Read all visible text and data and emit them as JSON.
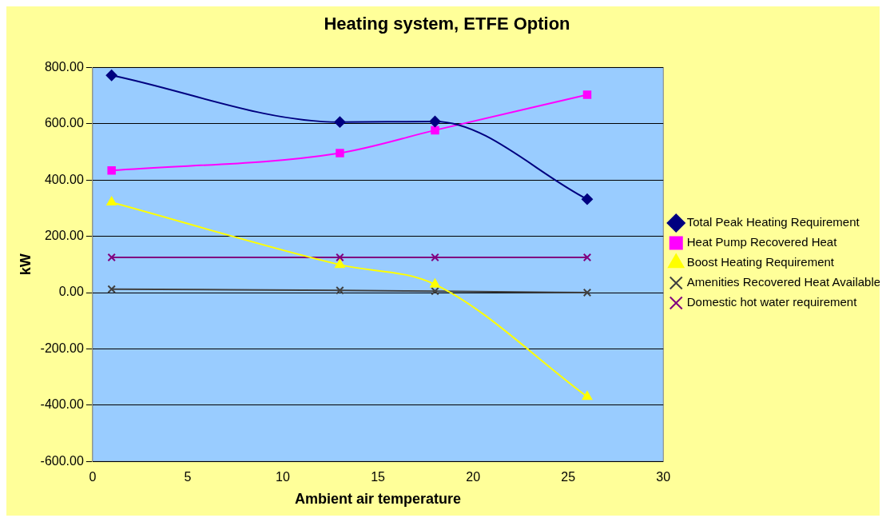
{
  "chart_data": {
    "type": "line",
    "title": "Heating system, ETFE Option",
    "xlabel": "Ambient air temperature",
    "ylabel": "kW",
    "x": [
      1,
      13,
      18,
      26
    ],
    "series": [
      {
        "name": "Total Peak Heating Requirement",
        "color": "#000080",
        "marker": "diamond",
        "values": [
          772,
          606,
          608,
          332
        ]
      },
      {
        "name": "Heat Pump Recovered Heat",
        "color": "#ff00ff",
        "marker": "square",
        "values": [
          434,
          496,
          577,
          703
        ]
      },
      {
        "name": "Boost Heating Requirement",
        "color": "#ffff00",
        "marker": "triangle",
        "values": [
          321,
          99,
          29,
          -370
        ]
      },
      {
        "name": "Amenities Recovered Heat Available",
        "color": "#404040",
        "marker": "cross",
        "values": [
          12,
          8,
          5,
          0
        ]
      },
      {
        "name": "Domestic hot water requirement",
        "color": "#800080",
        "marker": "cross",
        "values": [
          125,
          125,
          125,
          125
        ]
      }
    ],
    "xlim": [
      0,
      30
    ],
    "xticks": [
      0,
      5,
      10,
      15,
      20,
      25,
      30
    ],
    "ylim": [
      -600,
      800
    ],
    "yticks": [
      {
        "value": -600,
        "label": "-600.00"
      },
      {
        "value": -400,
        "label": "-400.00"
      },
      {
        "value": -200,
        "label": "-200.00"
      },
      {
        "value": 0,
        "label": "0.00"
      },
      {
        "value": 200,
        "label": "200.00"
      },
      {
        "value": 400,
        "label": "400.00"
      },
      {
        "value": 600,
        "label": "600.00"
      },
      {
        "value": 800,
        "label": "800.00"
      }
    ],
    "grid": "y",
    "legend": "right"
  }
}
